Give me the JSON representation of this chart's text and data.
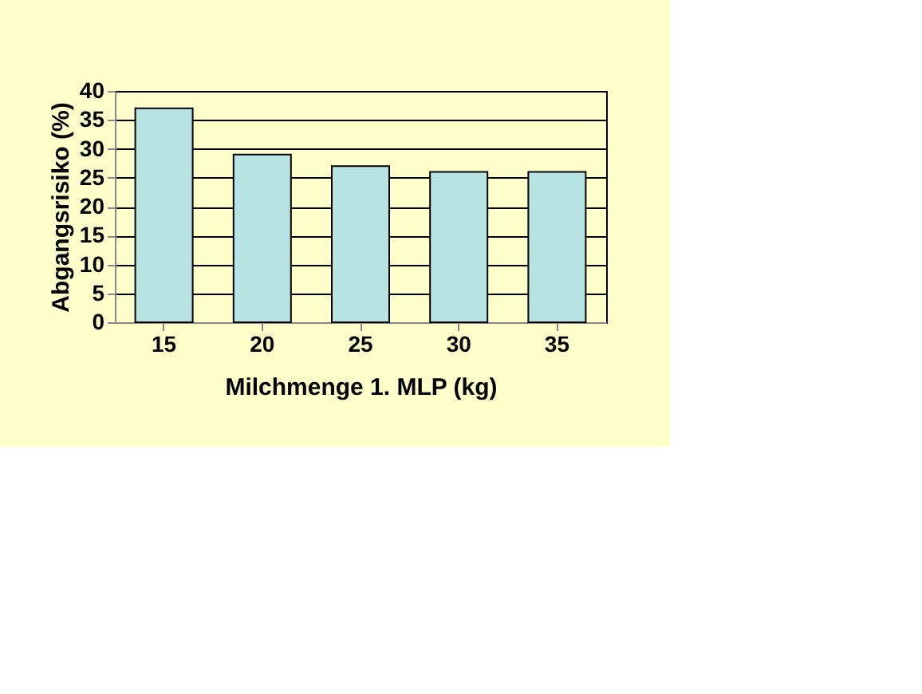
{
  "chart_data": {
    "type": "bar",
    "categories": [
      "15",
      "20",
      "25",
      "30",
      "35"
    ],
    "values": [
      37,
      29,
      27,
      26,
      26
    ],
    "color": "#b7e3e3",
    "xlabel": "Milchmenge 1. MLP (kg)",
    "ylabel": "Abgangsrisiko (%)",
    "ylim": [
      0,
      40
    ],
    "yticks": [
      0,
      5,
      10,
      15,
      20,
      25,
      30,
      35,
      40
    ],
    "grid": "y"
  }
}
